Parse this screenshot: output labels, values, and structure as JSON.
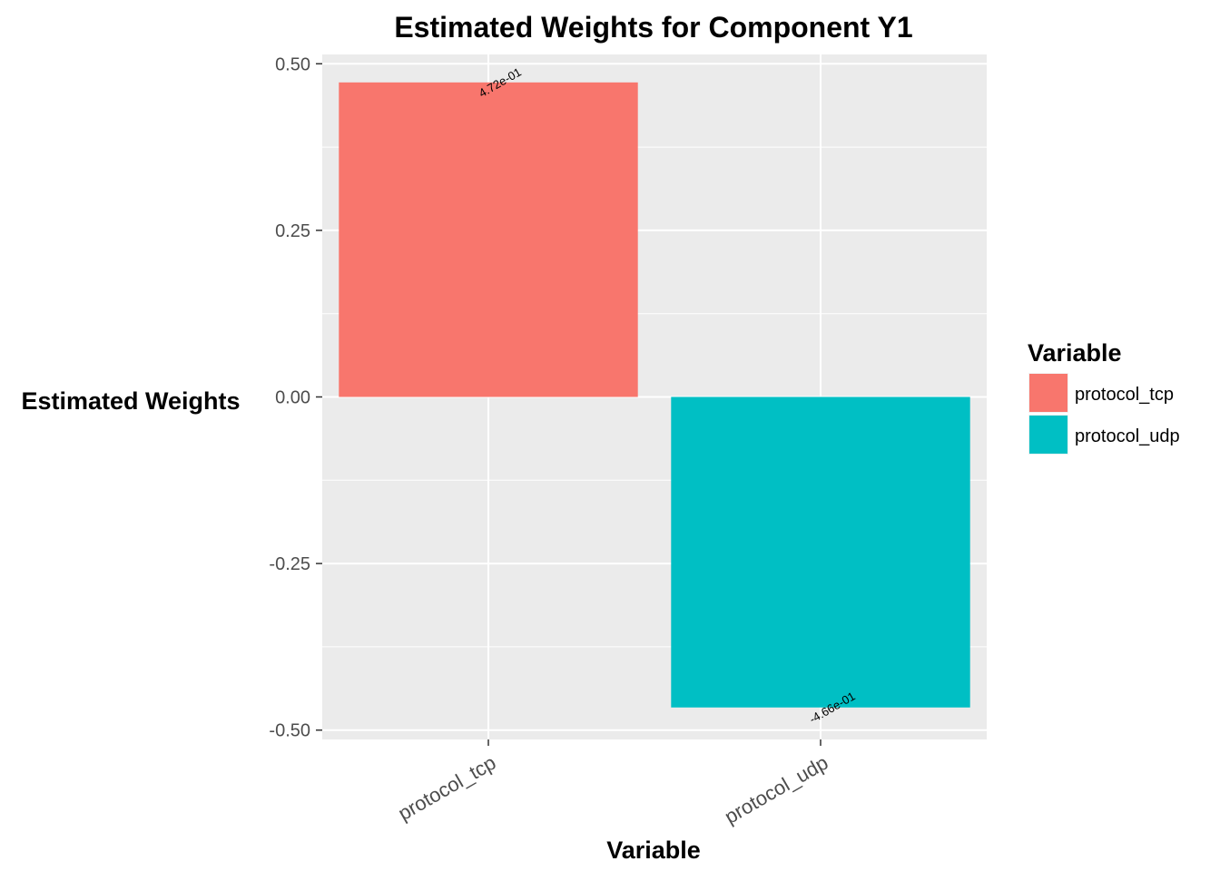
{
  "chart_data": {
    "type": "bar",
    "title": "Estimated Weights for Component Y1",
    "xlabel": "Variable",
    "ylabel": "Estimated Weights",
    "categories": [
      "protocol_tcp",
      "protocol_udp"
    ],
    "values": [
      0.472,
      -0.466
    ],
    "data_labels": [
      "4.72e-01",
      "-4.66e-01"
    ],
    "ylim": [
      -0.514,
      0.514
    ],
    "yticks": [
      -0.5,
      -0.25,
      0,
      0.25,
      0.5
    ],
    "ytick_labels": [
      "-0.50",
      "-0.25",
      "0.00",
      "0.25",
      "0.50"
    ],
    "colors": [
      "#F8766D",
      "#00BFC4"
    ],
    "grid": true,
    "panel_background": "#EBEBEB",
    "legend": {
      "title": "Variable",
      "position": "right",
      "entries": [
        "protocol_tcp",
        "protocol_udp"
      ]
    }
  }
}
